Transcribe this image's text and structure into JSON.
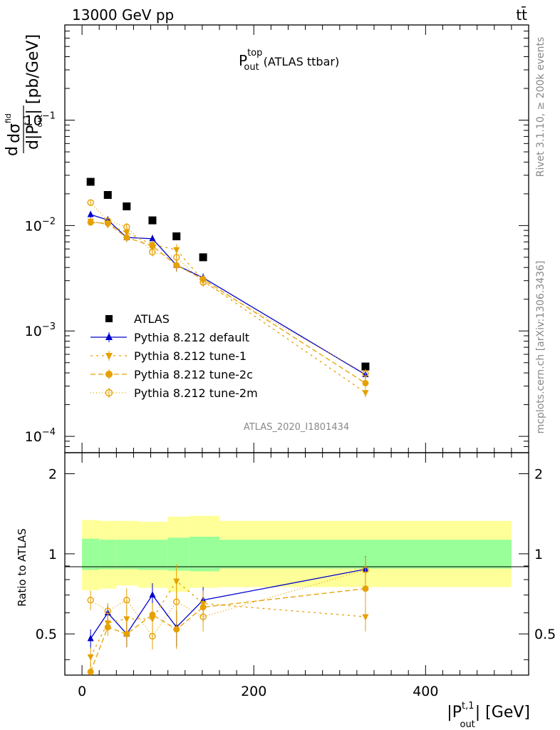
{
  "header": {
    "left": "13000 GeV pp",
    "right": "tt̄"
  },
  "side": {
    "rivet": "Rivet 3.1.10, ≥ 200k events",
    "mcplots": "mcplots.cern.ch [arXiv:1306.3436]"
  },
  "chart_data": {
    "type": "line",
    "title": "P_out^top (ATLAS ttbar)",
    "title_main": "P",
    "title_sup": "top",
    "title_sub": "out",
    "title_rest": "(ATLAS ttbar)",
    "analysis": "ATLAS_2020_I1801434",
    "ylabel": "dσ/d|P_out^t,1| [pb/GeV]",
    "ylabel_parts": {
      "d": "d",
      "sigma": "dσ",
      "fid": "fid",
      "bottom": "d|P",
      "sup": "t,1",
      "sub": "out",
      "unit": "| [pb/GeV]"
    },
    "xlabel": "|P_out^t,1| [GeV]",
    "xlabel_parts": {
      "open": "|P",
      "sup": "t,1",
      "sub": "out",
      "close": "| [GeV]"
    },
    "ratio_ylabel": "Ratio to ATLAS",
    "xlim": [
      -20,
      520
    ],
    "ylim": [
      7e-05,
      0.8
    ],
    "yscale": "log",
    "ratio_ylim": [
      0.35,
      2.4
    ],
    "x_ticks": [
      "0",
      "200",
      "400"
    ],
    "y_ticks": [
      {
        "base": "10",
        "exp": "−1",
        "value": 0.1
      },
      {
        "base": "10",
        "exp": "−2",
        "value": 0.01
      },
      {
        "base": "10",
        "exp": "−3",
        "value": 0.001
      },
      {
        "base": "10",
        "exp": "−4",
        "value": 0.0001
      }
    ],
    "ratio_ticks": [
      "0.5",
      "1",
      "2"
    ],
    "bins": [
      {
        "lo": 0,
        "hi": 20,
        "x": 10
      },
      {
        "lo": 20,
        "hi": 40,
        "x": 30
      },
      {
        "lo": 40,
        "hi": 65,
        "x": 52
      },
      {
        "lo": 65,
        "hi": 100,
        "x": 82
      },
      {
        "lo": 100,
        "hi": 125,
        "x": 110
      },
      {
        "lo": 125,
        "hi": 160,
        "x": 141
      },
      {
        "lo": 160,
        "hi": 500,
        "x": 330
      }
    ],
    "band_inner": [
      [
        0.87,
        1.14
      ],
      [
        0.875,
        1.13
      ],
      [
        0.875,
        1.13
      ],
      [
        0.87,
        1.13
      ],
      [
        0.865,
        1.15
      ],
      [
        0.86,
        1.16
      ],
      [
        0.88,
        1.13
      ]
    ],
    "band_outer": [
      [
        0.73,
        1.34
      ],
      [
        0.74,
        1.33
      ],
      [
        0.76,
        1.33
      ],
      [
        0.745,
        1.32
      ],
      [
        0.72,
        1.38
      ],
      [
        0.745,
        1.39
      ],
      [
        0.75,
        1.33
      ]
    ],
    "series": [
      {
        "name": "ATLAS",
        "color": "#000000",
        "marker": "square",
        "dash": "",
        "values": [
          0.026,
          0.0195,
          0.0152,
          0.0112,
          0.0079,
          0.005,
          0.00046
        ]
      },
      {
        "name": "Pythia 8.212 default",
        "color": "#0000cc",
        "marker": "triangle-up",
        "dash": "",
        "values": [
          0.0127,
          0.0113,
          0.0077,
          0.0075,
          0.0042,
          0.0032,
          0.000385
        ],
        "ratio": [
          0.48,
          0.6,
          0.5,
          0.7,
          0.53,
          0.67,
          0.875
        ]
      },
      {
        "name": "Pythia 8.212 tune-1",
        "color": "#e6a000",
        "marker": "triangle-down",
        "dash": "3,5",
        "values": [
          0.011,
          0.0102,
          0.0086,
          0.0066,
          0.0059,
          0.003,
          0.00026
        ],
        "ratio": [
          0.41,
          0.55,
          0.57,
          0.57,
          0.79,
          0.65,
          0.58
        ]
      },
      {
        "name": "Pythia 8.212 tune-2c",
        "color": "#e6a000",
        "marker": "circle",
        "dash": "7,4",
        "values": [
          0.0107,
          0.0105,
          0.0077,
          0.0064,
          0.0042,
          0.0031,
          0.00032
        ],
        "ratio": [
          0.36,
          0.53,
          0.5,
          0.59,
          0.52,
          0.63,
          0.74
        ]
      },
      {
        "name": "Pythia 8.212 tune-2m",
        "color": "#e6a000",
        "marker": "circle-open",
        "dash": "1,3",
        "values": [
          0.0165,
          0.0111,
          0.0097,
          0.0056,
          0.005,
          0.0029,
          0.000395
        ],
        "ratio": [
          0.67,
          0.61,
          0.67,
          0.49,
          0.66,
          0.58,
          0.87
        ]
      }
    ],
    "legend_placement": "bottom-left"
  }
}
